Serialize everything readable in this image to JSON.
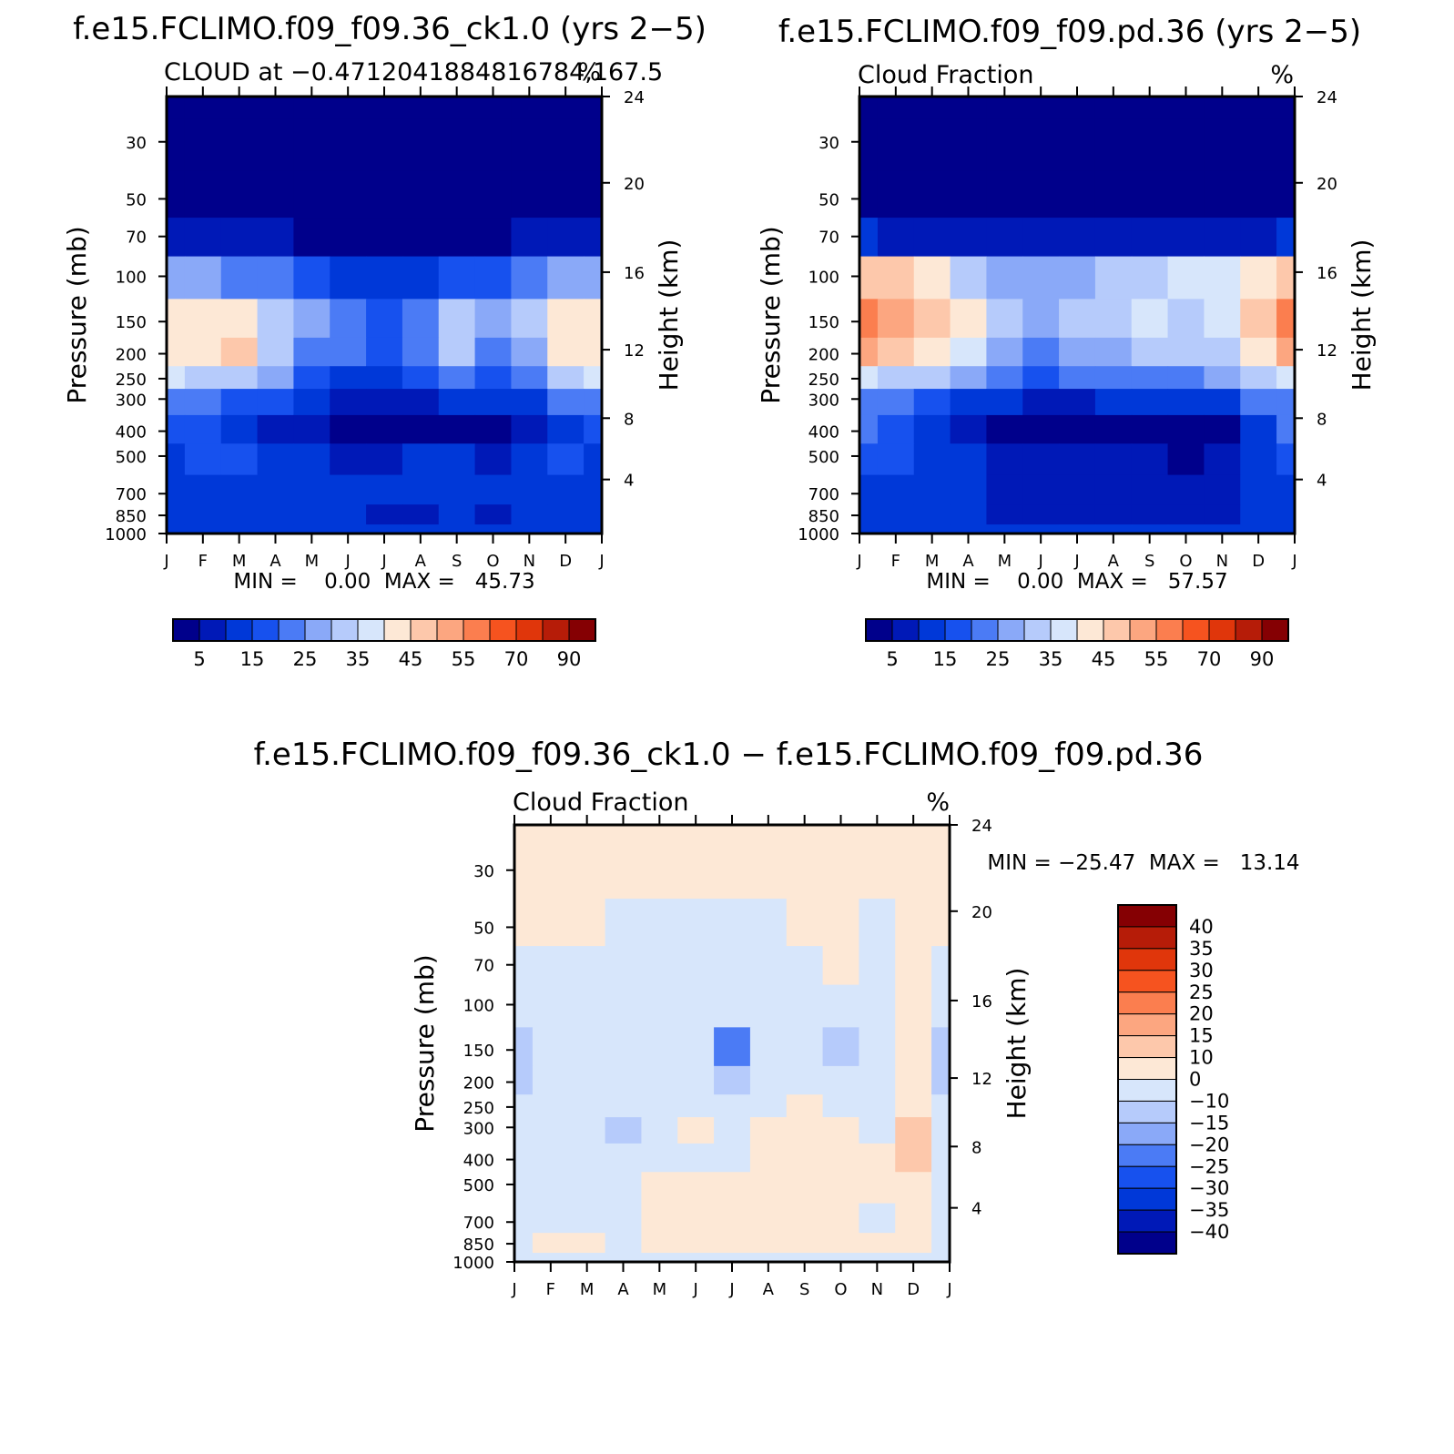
{
  "chart_data": [
    {
      "type": "heatmap",
      "subtype": "filled-contour",
      "title": "f.e15.FCLIMO.f09_f09.36_ck1.0 (yrs 2−5)",
      "subtitle_left": "CLOUD at −0.4712041884816784,167.5",
      "subtitle_right": "%",
      "xlabel": "",
      "ylabel": "Pressure (mb)",
      "ylabel_right": "Height (km)",
      "x_ticks": [
        "J",
        "F",
        "M",
        "A",
        "M",
        "J",
        "J",
        "A",
        "S",
        "O",
        "N",
        "D",
        "J"
      ],
      "y_ticks": [
        30,
        50,
        70,
        100,
        150,
        200,
        250,
        300,
        400,
        500,
        700,
        850,
        1000
      ],
      "y_right_ticks": [
        24,
        20,
        16,
        12,
        8,
        4
      ],
      "ylim": [
        1000,
        20
      ],
      "stats": "MIN =    0.00  MAX =   45.73",
      "min": 0.0,
      "max": 45.73,
      "colorbar_labels": [
        "5",
        "15",
        "25",
        "35",
        "45",
        "55",
        "70",
        "90"
      ],
      "levels": [
        5,
        10,
        15,
        20,
        25,
        30,
        35,
        40,
        45,
        50,
        55,
        60,
        70,
        80,
        90
      ],
      "colors": [
        "#00008b",
        "#0019b7",
        "#0038d8",
        "#1751ee",
        "#4b7bf5",
        "#8aa9f8",
        "#b6cbfb",
        "#d7e6fb",
        "#fde8d6",
        "#fdc8ab",
        "#fca680",
        "#fb7e4f",
        "#f6531f",
        "#e0360b",
        "#b61c08",
        "#850003"
      ],
      "pressure_levels": [
        20,
        30,
        50,
        70,
        100,
        150,
        200,
        250,
        300,
        400,
        500,
        700,
        850,
        1000
      ],
      "values": [
        [
          0,
          0,
          0,
          0,
          0,
          0,
          0,
          0,
          0,
          0,
          0,
          0,
          0
        ],
        [
          0,
          0,
          0,
          0,
          0,
          0,
          0,
          0,
          0,
          0,
          0,
          0,
          0
        ],
        [
          0,
          0,
          0,
          0,
          0,
          0,
          0,
          0,
          0,
          0,
          0,
          0,
          0
        ],
        [
          8,
          7,
          5,
          5,
          4,
          3,
          3,
          3,
          4,
          4,
          5,
          7,
          8
        ],
        [
          28,
          26,
          22,
          20,
          16,
          12,
          10,
          12,
          15,
          16,
          22,
          28,
          28
        ],
        [
          42,
          44,
          40,
          34,
          28,
          22,
          18,
          24,
          34,
          26,
          30,
          42,
          42
        ],
        [
          43,
          44,
          45,
          32,
          24,
          20,
          16,
          22,
          30,
          24,
          28,
          40,
          43
        ],
        [
          36,
          34,
          30,
          26,
          18,
          14,
          12,
          16,
          22,
          18,
          22,
          34,
          36
        ],
        [
          22,
          20,
          18,
          15,
          11,
          9,
          8,
          9,
          12,
          10,
          14,
          20,
          22
        ],
        [
          16,
          15,
          12,
          7,
          5,
          3,
          2,
          3,
          3,
          2,
          5,
          12,
          16
        ],
        [
          14,
          16,
          15,
          13,
          10,
          8,
          9,
          10,
          13,
          8,
          12,
          16,
          14
        ],
        [
          13,
          14,
          12,
          12,
          12,
          10,
          10,
          10,
          12,
          10,
          11,
          14,
          13
        ],
        [
          12,
          12,
          12,
          12,
          12,
          10,
          8,
          9,
          11,
          9,
          10,
          13,
          12
        ],
        [
          10,
          10,
          10,
          10,
          10,
          10,
          10,
          10,
          10,
          10,
          10,
          10,
          10
        ]
      ]
    },
    {
      "type": "heatmap",
      "subtype": "filled-contour",
      "title": "f.e15.FCLIMO.f09_f09.pd.36 (yrs 2−5)",
      "subtitle_left": "Cloud Fraction",
      "subtitle_right": "%",
      "xlabel": "",
      "ylabel": "Pressure (mb)",
      "ylabel_right": "Height (km)",
      "x_ticks": [
        "J",
        "F",
        "M",
        "A",
        "M",
        "J",
        "J",
        "A",
        "S",
        "O",
        "N",
        "D",
        "J"
      ],
      "y_ticks": [
        30,
        50,
        70,
        100,
        150,
        200,
        250,
        300,
        400,
        500,
        700,
        850,
        1000
      ],
      "y_right_ticks": [
        24,
        20,
        16,
        12,
        8,
        4
      ],
      "ylim": [
        1000,
        20
      ],
      "stats": "MIN =    0.00  MAX =   57.57",
      "min": 0.0,
      "max": 57.57,
      "colorbar_labels": [
        "5",
        "15",
        "25",
        "35",
        "45",
        "55",
        "70",
        "90"
      ],
      "levels": [
        5,
        10,
        15,
        20,
        25,
        30,
        35,
        40,
        45,
        50,
        55,
        60,
        70,
        80,
        90
      ],
      "colors": [
        "#00008b",
        "#0019b7",
        "#0038d8",
        "#1751ee",
        "#4b7bf5",
        "#8aa9f8",
        "#b6cbfb",
        "#d7e6fb",
        "#fde8d6",
        "#fdc8ab",
        "#fca680",
        "#fb7e4f",
        "#f6531f",
        "#e0360b",
        "#b61c08",
        "#850003"
      ],
      "pressure_levels": [
        20,
        30,
        50,
        70,
        100,
        150,
        200,
        250,
        300,
        400,
        500,
        700,
        850,
        1000
      ],
      "values": [
        [
          0,
          0,
          0,
          0,
          0,
          0,
          0,
          0,
          0,
          0,
          0,
          0,
          0
        ],
        [
          0,
          0,
          0,
          0,
          0,
          0,
          0,
          0,
          0,
          0,
          0,
          0,
          0
        ],
        [
          0,
          0,
          0,
          0,
          0,
          0,
          0,
          0,
          0,
          0,
          0,
          0,
          0
        ],
        [
          10,
          9,
          8,
          7,
          6,
          5,
          5,
          5,
          6,
          6,
          7,
          9,
          10
        ],
        [
          48,
          46,
          40,
          30,
          28,
          26,
          28,
          30,
          34,
          36,
          38,
          40,
          48
        ],
        [
          56,
          52,
          48,
          40,
          32,
          28,
          30,
          34,
          36,
          34,
          38,
          46,
          56
        ],
        [
          50,
          46,
          42,
          36,
          28,
          24,
          26,
          28,
          32,
          30,
          34,
          44,
          50
        ],
        [
          38,
          34,
          30,
          26,
          20,
          18,
          20,
          22,
          24,
          22,
          26,
          34,
          38
        ],
        [
          24,
          20,
          16,
          12,
          10,
          8,
          9,
          10,
          12,
          11,
          14,
          22,
          24
        ],
        [
          20,
          16,
          10,
          6,
          4,
          3,
          2,
          2,
          2,
          2,
          4,
          14,
          20
        ],
        [
          18,
          17,
          14,
          10,
          8,
          6,
          5,
          5,
          5,
          4,
          6,
          14,
          18
        ],
        [
          14,
          13,
          12,
          10,
          8,
          6,
          6,
          6,
          6,
          6,
          8,
          12,
          14
        ],
        [
          12,
          12,
          11,
          10,
          8,
          6,
          6,
          6,
          6,
          6,
          8,
          12,
          12
        ],
        [
          10,
          10,
          10,
          10,
          10,
          10,
          10,
          10,
          10,
          10,
          10,
          10,
          10
        ]
      ]
    },
    {
      "type": "heatmap",
      "subtype": "filled-contour",
      "title": "f.e15.FCLIMO.f09_f09.36_ck1.0 − f.e15.FCLIMO.f09_f09.pd.36",
      "subtitle_left": "Cloud Fraction",
      "subtitle_right": "%",
      "xlabel": "",
      "ylabel": "Pressure (mb)",
      "ylabel_right": "Height (km)",
      "x_ticks": [
        "J",
        "F",
        "M",
        "A",
        "M",
        "J",
        "J",
        "A",
        "S",
        "O",
        "N",
        "D",
        "J"
      ],
      "y_ticks": [
        30,
        50,
        70,
        100,
        150,
        200,
        250,
        300,
        400,
        500,
        700,
        850,
        1000
      ],
      "y_right_ticks": [
        24,
        20,
        16,
        12,
        8,
        4
      ],
      "ylim": [
        1000,
        20
      ],
      "stats": "MIN = −25.47  MAX =   13.14",
      "min": -25.47,
      "max": 13.14,
      "colorbar_labels": [
        "40",
        "35",
        "30",
        "25",
        "20",
        "15",
        "10",
        "0",
        "−10",
        "−15",
        "−20",
        "−25",
        "−30",
        "−35",
        "−40"
      ],
      "levels": [
        -40,
        -35,
        -30,
        -25,
        -20,
        -15,
        -10,
        0,
        10,
        15,
        20,
        25,
        30,
        35,
        40
      ],
      "colors": [
        "#00008b",
        "#0019b7",
        "#0038d8",
        "#1751ee",
        "#4b7bf5",
        "#8aa9f8",
        "#b6cbfb",
        "#d7e6fb",
        "#fde8d6",
        "#fdc8ab",
        "#fca680",
        "#fb7e4f",
        "#f6531f",
        "#e0360b",
        "#b61c08",
        "#850003"
      ],
      "pressure_levels": [
        20,
        30,
        50,
        70,
        100,
        150,
        200,
        250,
        300,
        400,
        500,
        700,
        850,
        1000
      ],
      "values": [
        [
          1,
          1,
          1,
          1,
          1,
          1,
          1,
          1,
          1,
          1,
          1,
          1,
          1
        ],
        [
          1,
          1,
          1,
          1,
          1,
          1,
          1,
          1,
          1,
          1,
          1,
          1,
          1
        ],
        [
          1,
          1,
          1,
          -1,
          -1,
          -1,
          -1,
          -1,
          1,
          1,
          -1,
          1,
          1
        ],
        [
          -1,
          -1,
          -1,
          -1,
          -1,
          -1,
          -1,
          -1,
          -1,
          1,
          -1,
          1,
          -1
        ],
        [
          -1,
          -1,
          -1,
          -1,
          -1,
          -1,
          -1,
          -1,
          -1,
          -1,
          -1,
          1,
          -1
        ],
        [
          -12,
          -8,
          -4,
          -2,
          -2,
          -4,
          -25,
          -4,
          -2,
          -12,
          -2,
          1,
          -12
        ],
        [
          -12,
          -6,
          -4,
          -2,
          -2,
          -2,
          -12,
          -2,
          -2,
          -4,
          -2,
          2,
          -12
        ],
        [
          -10,
          -4,
          -3,
          -2,
          -2,
          -2,
          -2,
          -2,
          1,
          -2,
          -2,
          3,
          -10
        ],
        [
          -8,
          -4,
          -3,
          -12,
          -2,
          2,
          -2,
          2,
          2,
          2,
          -2,
          12,
          -8
        ],
        [
          -2,
          -2,
          -2,
          -10,
          -2,
          -2,
          -2,
          2,
          2,
          2,
          2,
          11,
          -2
        ],
        [
          -2,
          -1,
          -1,
          -2,
          1,
          1,
          1,
          1,
          2,
          2,
          1,
          2,
          -2
        ],
        [
          -1,
          -1,
          -1,
          -1,
          1,
          1,
          1,
          1,
          1,
          1,
          -1,
          1,
          -1
        ],
        [
          -1,
          1,
          1,
          -1,
          1,
          1,
          1,
          1,
          1,
          1,
          1,
          1,
          -1
        ],
        [
          -1,
          -1,
          -1,
          -1,
          -1,
          -1,
          -1,
          -1,
          -1,
          -1,
          -1,
          -1,
          -1
        ]
      ]
    }
  ]
}
